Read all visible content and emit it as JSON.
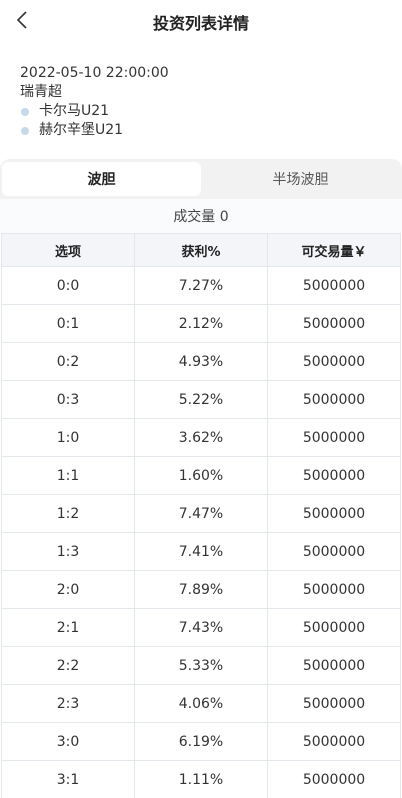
{
  "header": {
    "title": "投资列表详情"
  },
  "match": {
    "time": "2022-05-10 22:00:00",
    "league": "瑞青超",
    "home_team": "卡尔马U21",
    "away_team": "赫尔辛堡U21"
  },
  "tabs": [
    {
      "label": "波胆",
      "active": true
    },
    {
      "label": "半场波胆",
      "active": false
    }
  ],
  "volume_text": "成交量 0",
  "table": {
    "columns": [
      "选项",
      "获利%",
      "可交易量￥"
    ],
    "rows": [
      [
        "0:0",
        "7.27%",
        "5000000"
      ],
      [
        "0:1",
        "2.12%",
        "5000000"
      ],
      [
        "0:2",
        "4.93%",
        "5000000"
      ],
      [
        "0:3",
        "5.22%",
        "5000000"
      ],
      [
        "1:0",
        "3.62%",
        "5000000"
      ],
      [
        "1:1",
        "1.60%",
        "5000000"
      ],
      [
        "1:2",
        "7.47%",
        "5000000"
      ],
      [
        "1:3",
        "7.41%",
        "5000000"
      ],
      [
        "2:0",
        "7.89%",
        "5000000"
      ],
      [
        "2:1",
        "7.43%",
        "5000000"
      ],
      [
        "2:2",
        "5.33%",
        "5000000"
      ],
      [
        "2:3",
        "4.06%",
        "5000000"
      ],
      [
        "3:0",
        "6.19%",
        "5000000"
      ],
      [
        "3:1",
        "1.11%",
        "5000000"
      ]
    ]
  },
  "colors": {
    "team_dot": "#c7d8ea",
    "tab_bar_bg": "#f2f2f2",
    "table_header_bg": "#f3f5f8",
    "border": "#e3e6ea"
  }
}
